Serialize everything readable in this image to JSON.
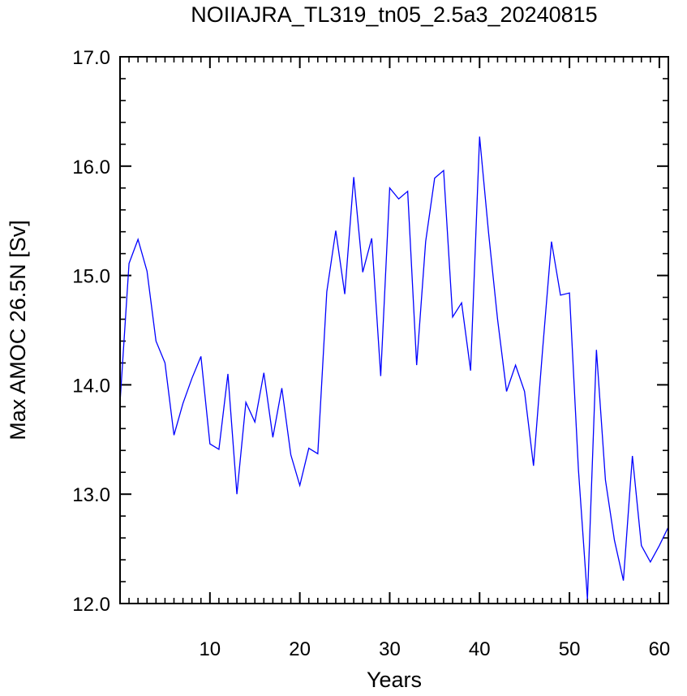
{
  "chart_data": {
    "type": "line",
    "title": "NOIIAJRA_TL319_tn05_2.5a3_20240815",
    "xlabel": "Years",
    "ylabel": "Max AMOC 26.5N [Sv]",
    "xlim": [
      0,
      61
    ],
    "ylim": [
      12.0,
      17.0
    ],
    "x_ticks": [
      10,
      20,
      30,
      40,
      50,
      60
    ],
    "x_tick_labels": [
      "10",
      "20",
      "30",
      "40",
      "50",
      "60"
    ],
    "y_ticks": [
      12.0,
      13.0,
      14.0,
      15.0,
      16.0,
      17.0
    ],
    "y_tick_labels": [
      "12.0",
      "13.0",
      "14.0",
      "15.0",
      "16.0",
      "17.0"
    ],
    "grid": false,
    "series": [
      {
        "color": "#0000ff",
        "x": [
          0,
          1,
          2,
          3,
          4,
          5,
          6,
          7,
          8,
          9,
          10,
          11,
          12,
          13,
          14,
          15,
          16,
          17,
          18,
          19,
          20,
          21,
          22,
          23,
          24,
          25,
          26,
          27,
          28,
          29,
          30,
          31,
          32,
          33,
          34,
          35,
          36,
          37,
          38,
          39,
          40,
          41,
          42,
          43,
          44,
          45,
          46,
          47,
          48,
          49,
          50,
          51,
          52,
          53,
          54,
          55,
          56,
          57,
          58,
          59,
          60,
          61
        ],
        "values": [
          13.84,
          15.11,
          15.33,
          15.04,
          14.4,
          14.2,
          13.54,
          13.83,
          14.06,
          14.26,
          13.46,
          13.41,
          14.1,
          13.0,
          13.84,
          13.66,
          14.11,
          13.52,
          13.97,
          13.36,
          13.08,
          13.42,
          13.37,
          14.85,
          15.41,
          14.83,
          15.9,
          15.03,
          15.34,
          14.08,
          15.8,
          15.7,
          15.77,
          14.18,
          15.31,
          15.89,
          15.96,
          14.62,
          14.75,
          14.13,
          16.27,
          15.39,
          14.6,
          13.94,
          14.18,
          13.94,
          13.26,
          14.31,
          15.31,
          14.82,
          14.84,
          13.22,
          12.04,
          14.32,
          13.13,
          12.58,
          12.21,
          13.35,
          12.53,
          12.38,
          12.53,
          12.7
        ]
      }
    ]
  }
}
